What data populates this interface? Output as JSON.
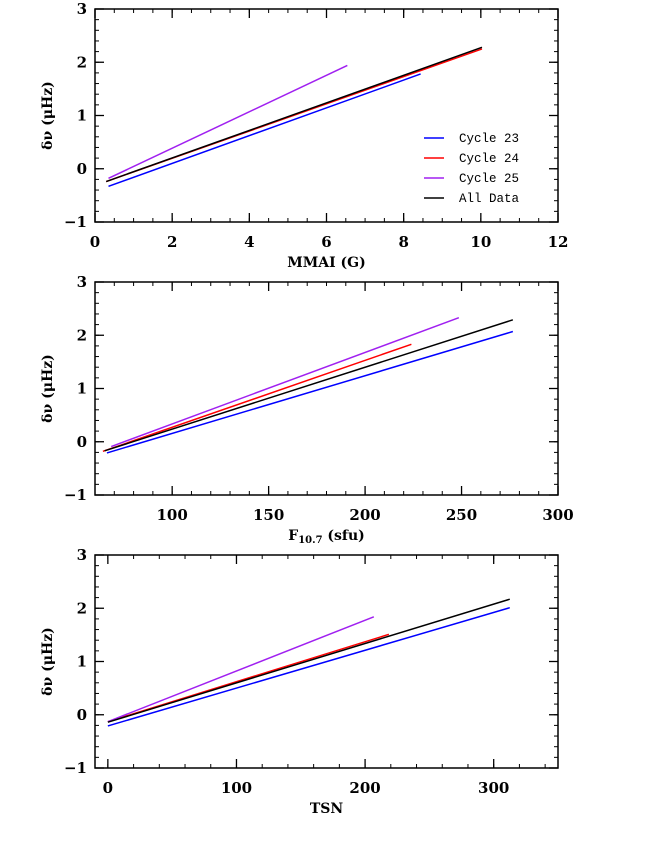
{
  "chart_data": [
    {
      "type": "line",
      "xlabel": "MMAI (G)",
      "ylabel": "δν (μHz)",
      "xlim": [
        0,
        12
      ],
      "ylim": [
        -1,
        3
      ],
      "xticks": [
        0,
        2,
        4,
        6,
        8,
        10,
        12
      ],
      "yticks": [
        -1,
        0,
        1,
        2,
        3
      ],
      "x_minor": 0.5,
      "y_minor": 0.2,
      "grid": false,
      "legend": "right",
      "series": [
        {
          "name": "Cycle 23",
          "color": "#0000ff",
          "x": [
            0.35,
            8.44
          ],
          "y": [
            -0.33,
            1.78
          ]
        },
        {
          "name": "Cycle 24",
          "color": "#ff0000",
          "x": [
            0.29,
            10.03
          ],
          "y": [
            -0.24,
            2.25
          ]
        },
        {
          "name": "Cycle 25",
          "color": "#a020f0",
          "x": [
            0.35,
            6.54
          ],
          "y": [
            -0.18,
            1.94
          ]
        },
        {
          "name": "All Data",
          "color": "#000000",
          "x": [
            0.29,
            10.03
          ],
          "y": [
            -0.24,
            2.28
          ]
        }
      ]
    },
    {
      "type": "line",
      "xlabel": "F",
      "xlabel_sub": "10.7",
      "xlabel_suffix": " (sfu)",
      "ylabel": "δν (μHz)",
      "xlim": [
        60,
        300
      ],
      "ylim": [
        -1,
        3
      ],
      "xticks": [
        100,
        150,
        200,
        250,
        300
      ],
      "yticks": [
        -1,
        0,
        1,
        2,
        3
      ],
      "x_minor": 10,
      "y_minor": 0.2,
      "grid": false,
      "series": [
        {
          "color": "#0000ff",
          "x": [
            66.2,
            276.6
          ],
          "y": [
            -0.21,
            2.07
          ]
        },
        {
          "color": "#ff0000",
          "x": [
            64.1,
            224.0
          ],
          "y": [
            -0.18,
            1.83
          ]
        },
        {
          "color": "#a020f0",
          "x": [
            68.4,
            248.6
          ],
          "y": [
            -0.09,
            2.33
          ]
        },
        {
          "color": "#000000",
          "x": [
            65.0,
            276.6
          ],
          "y": [
            -0.17,
            2.29
          ]
        }
      ]
    },
    {
      "type": "line",
      "xlabel": "TSN",
      "ylabel": "δν (μHz)",
      "xlim": [
        -10,
        350
      ],
      "ylim": [
        -1,
        3
      ],
      "xticks": [
        0,
        100,
        200,
        300
      ],
      "yticks": [
        -1,
        0,
        1,
        2,
        3
      ],
      "x_minor": 20,
      "y_minor": 0.2,
      "grid": false,
      "series": [
        {
          "color": "#0000ff",
          "x": [
            0,
            312.5
          ],
          "y": [
            -0.21,
            2.01
          ]
        },
        {
          "color": "#ff0000",
          "x": [
            0,
            218.5
          ],
          "y": [
            -0.13,
            1.51
          ]
        },
        {
          "color": "#a020f0",
          "x": [
            0,
            206.8
          ],
          "y": [
            -0.13,
            1.84
          ]
        },
        {
          "color": "#000000",
          "x": [
            0,
            312.5
          ],
          "y": [
            -0.14,
            2.17
          ]
        }
      ]
    }
  ]
}
